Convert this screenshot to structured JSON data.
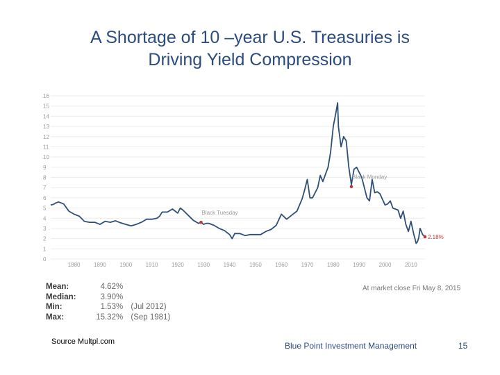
{
  "slide": {
    "title_line1": "A Shortage of 10 –year U.S. Treasuries is",
    "title_line2": "Driving Yield Compression"
  },
  "chart_data": {
    "type": "line",
    "title": "",
    "xlabel": "",
    "ylabel": "",
    "xlim": [
      1871,
      2015.4
    ],
    "ylim": [
      0,
      16
    ],
    "y_ticks": [
      "0",
      "1",
      "2",
      "3",
      "4",
      "5",
      "6",
      "7",
      "8",
      "9",
      "10",
      "11",
      "12",
      "13",
      "14",
      "15",
      "16"
    ],
    "x_ticks": [
      "1880",
      "1890",
      "1900",
      "1910",
      "1920",
      "1930",
      "1940",
      "1950",
      "1960",
      "1970",
      "1980",
      "1990",
      "2000",
      "2010"
    ],
    "grid": true,
    "line_color": "#2e4f75",
    "marker_color": "#c0353d",
    "series": [
      {
        "x": [
          1871,
          1872,
          1873,
          1874,
          1876,
          1878,
          1880,
          1882,
          1884,
          1886,
          1888,
          1890,
          1892,
          1894,
          1896,
          1898,
          1900,
          1902,
          1904,
          1906,
          1908,
          1910,
          1912,
          1913,
          1914,
          1916,
          1918,
          1920,
          1921,
          1922,
          1924,
          1926,
          1928,
          1929,
          1930,
          1931,
          1932,
          1934,
          1936,
          1938,
          1940,
          1941,
          1942,
          1944,
          1946,
          1948,
          1950,
          1952,
          1954,
          1956,
          1958,
          1960,
          1962,
          1964,
          1966,
          1968,
          1969,
          1970,
          1971,
          1972,
          1974,
          1975,
          1976,
          1978,
          1979,
          1980,
          1981,
          1981.7,
          1982,
          1983,
          1984,
          1985,
          1986,
          1987,
          1988,
          1989,
          1990,
          1991,
          1992,
          1993,
          1994,
          1995,
          1996,
          1997,
          1998,
          2000,
          2001,
          2002,
          2003,
          2005,
          2006,
          2007,
          2008,
          2009,
          2010,
          2011,
          2012,
          2012.5,
          2013,
          2013.5,
          2014,
          2014.5,
          2015.4
        ],
        "y": [
          5.3,
          5.35,
          5.5,
          5.6,
          5.4,
          4.7,
          4.4,
          4.2,
          3.7,
          3.6,
          3.6,
          3.4,
          3.7,
          3.6,
          3.75,
          3.55,
          3.4,
          3.25,
          3.4,
          3.6,
          3.9,
          3.9,
          4.0,
          4.2,
          4.6,
          4.6,
          4.9,
          4.5,
          5.0,
          4.8,
          4.3,
          3.8,
          3.5,
          3.6,
          3.4,
          3.5,
          3.5,
          3.3,
          3.0,
          2.8,
          2.4,
          2.0,
          2.5,
          2.5,
          2.3,
          2.4,
          2.4,
          2.4,
          2.7,
          2.9,
          3.3,
          4.4,
          3.9,
          4.3,
          4.7,
          5.9,
          6.8,
          7.8,
          6.0,
          6.0,
          7.0,
          8.2,
          7.6,
          9.0,
          10.5,
          13.0,
          14.3,
          15.32,
          13.0,
          11.0,
          12.0,
          11.6,
          9.0,
          7.3,
          8.8,
          9.0,
          8.5,
          8.0,
          7.0,
          6.0,
          5.7,
          7.8,
          6.5,
          6.6,
          6.4,
          5.3,
          5.4,
          5.7,
          5.0,
          4.8,
          4.0,
          4.7,
          3.4,
          2.7,
          3.7,
          2.5,
          1.53,
          1.7,
          2.1,
          3.0,
          2.7,
          2.4,
          2.18
        ]
      }
    ],
    "markers": [
      {
        "label": "Black Tuesday",
        "x": 1929,
        "y": 3.6
      },
      {
        "label": "Black Monday",
        "x": 1987,
        "y": 7.1
      },
      {
        "label": "2.18%",
        "x": 2015.4,
        "y": 2.18
      }
    ]
  },
  "stats": [
    {
      "label": "Mean:",
      "value": "4.62%",
      "date": ""
    },
    {
      "label": "Median:",
      "value": "3.90%",
      "date": ""
    },
    {
      "label": "Min:",
      "value": "1.53%",
      "date": "(Jul 2012)"
    },
    {
      "label": "Max:",
      "value": "15.32%",
      "date": "(Sep 1981)"
    }
  ],
  "market_close": "At market close Fri May 8, 2015",
  "footer": {
    "source": "Source Multpl.com",
    "company": "Blue Point Investment Management",
    "page_number": "15"
  }
}
